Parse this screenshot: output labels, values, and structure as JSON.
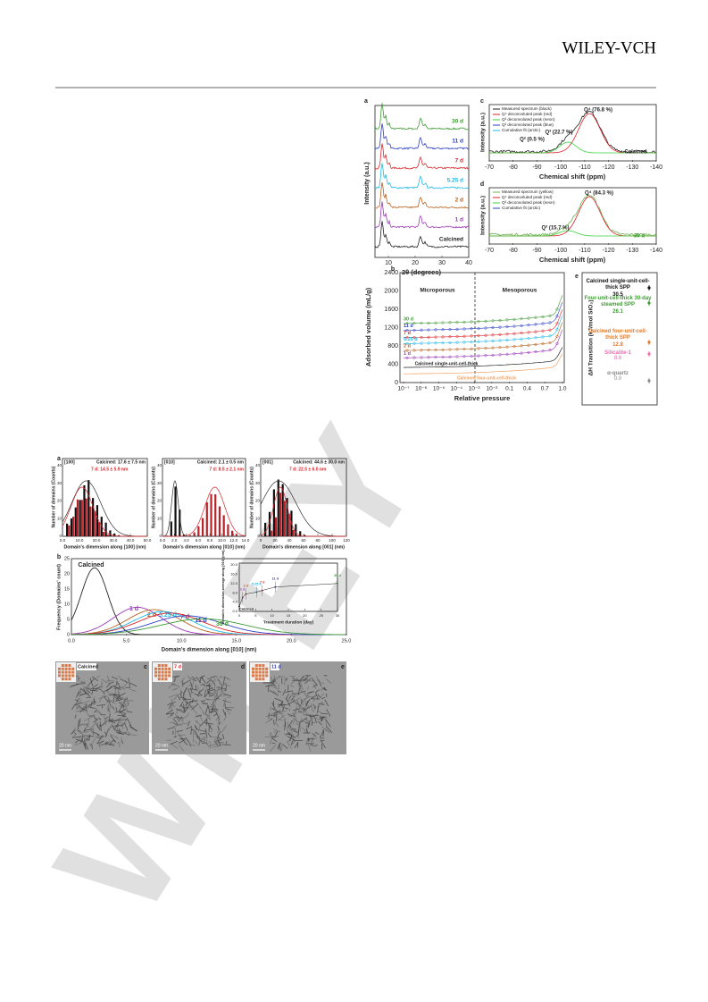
{
  "header": {
    "publisher": "WILEY-VCH"
  },
  "watermark": "WILEY",
  "figure1": {
    "a": {
      "label": "a",
      "curves": [
        "30 d",
        "11 d",
        "7 d",
        "5.25 d",
        "2 d",
        "1 d",
        "Calcined"
      ],
      "ylabel": "Intensity (a.u.)",
      "xlabel": "2θ (degrees)",
      "xticks": [
        "10",
        "20",
        "30",
        "40"
      ]
    },
    "c": {
      "label": "c",
      "legend": [
        "Measured spectrum (black)",
        "Q⁴ deconvoluted peak (red)",
        "Q³ deconvoluted peak (neon)",
        "Q² deconvoluted peak (blue)",
        "Cumulative fit (arctic)"
      ],
      "peaks": [
        "Q⁴ (76.8 %)",
        "Q³ (22.7 %)",
        "Q² (0.5 %)"
      ],
      "sample": "Calcined",
      "ylabel": "Intensity (a.u.)",
      "xlabel": "Chemical shift (ppm)",
      "xticks": [
        "-70",
        "-80",
        "-90",
        "-100",
        "-110",
        "-120",
        "-130",
        "-140"
      ]
    },
    "d": {
      "label": "d",
      "legend": [
        "Measured spectrum (yellow)",
        "Q⁴ deconvoluted peak (red)",
        "Q³ deconvoluted peak (neon)",
        "Cumulative fit (arctic)"
      ],
      "peaks": [
        "Q⁴ (84.3 %)",
        "Q³ (15.7 %)"
      ],
      "sample": "30 d",
      "ylabel": "Intensity (a.u.)",
      "xlabel": "Chemical shift (ppm)",
      "xticks": [
        "-70",
        "-80",
        "-90",
        "-100",
        "-110",
        "-120",
        "-130",
        "-140"
      ]
    },
    "b": {
      "label": "b",
      "ylabel": "Adsorbed volume (mL/g)",
      "yticks": [
        "0",
        "400",
        "800",
        "1200",
        "1600",
        "2000",
        "2400"
      ],
      "regions": [
        "Microporous",
        "Mesoporous"
      ],
      "xticks": [
        "10⁻⁷",
        "10⁻⁶",
        "10⁻⁵",
        "10⁻⁴",
        "10⁻³",
        "10⁻²",
        "0.1",
        "0.4",
        "0.7",
        "1.0"
      ],
      "xlabel": "Relative pressure",
      "curves": [
        "30 d",
        "11 d",
        "7 d",
        "5.25 d",
        "2 d",
        "1 d"
      ],
      "references": [
        "Calcined single-unit-cell-thick",
        "Calcined four-unit-cell-thick"
      ]
    },
    "e": {
      "label": "e",
      "ylabel": "ΔH Transition (kJ/mol SiO₂)",
      "entries": [
        {
          "name": "Calcined single-unit-cell-thick SPP",
          "value": "30.5"
        },
        {
          "name": "Four-unit-cell-thick 30-day steamed SPP",
          "value": "26.1"
        },
        {
          "name": "Calcined four-unit-cell-thick SPP",
          "value": "12.8"
        },
        {
          "name": "Silicalite-1",
          "value": "8.6"
        },
        {
          "name": "α-quartz",
          "value": "0.0"
        }
      ]
    }
  },
  "figure2": {
    "a": {
      "label": "a",
      "ylabel": "Number of domains (Counts)",
      "panels": [
        {
          "direction": "[100]",
          "calcined": "Calcined: 17.6 ± 7.5 nm",
          "treated": "7 d: 14.5 ± 5.9 nm",
          "xlabel": "Domain's dimension along [100] (nm)",
          "xticks": [
            "0.0",
            "10.0",
            "20.0",
            "30.0",
            "40.0",
            "50.0"
          ],
          "yticks": [
            "0",
            "10",
            "20",
            "30",
            "40"
          ]
        },
        {
          "direction": "[010]",
          "calcined": "Calcined: 2.1 ± 0.5 nm",
          "treated": "7 d: 8.5 ± 2.1 nm",
          "xlabel": "Domain's dimension along [010] (nm)",
          "xticks": [
            "0.0",
            "2.0",
            "4.0",
            "6.0",
            "8.0",
            "10.0",
            "12.0",
            "14.0"
          ],
          "yticks": [
            "0",
            "10",
            "20",
            "30",
            "40"
          ]
        },
        {
          "direction": "[001]",
          "calcined": "Calcined: 44.6 ± 30.0 nm",
          "treated": "7 d: 22.5 ± 6.0 nm",
          "xlabel": "Domain's dimension along [001] (nm)",
          "xticks": [
            "0",
            "20",
            "40",
            "60",
            "80",
            "100",
            "120"
          ],
          "yticks": [
            "0",
            "10",
            "20",
            "30",
            "40"
          ]
        }
      ]
    },
    "b": {
      "label": "b",
      "ylabel": "Frequency (Domains' count)",
      "xlabel": "Domain's dimension along [010] (nm)",
      "xticks": [
        "0.0",
        "5.0",
        "10.0",
        "15.0",
        "20.0",
        "25.0"
      ],
      "yticks": [
        "0",
        "5",
        "10",
        "15",
        "20",
        "25"
      ],
      "curves": [
        "Calcined",
        "1 d",
        "2 d",
        "5.25 d",
        "7 d",
        "11 d",
        "30 d"
      ],
      "inset": {
        "ylabel": "Domain's dimension average along [010] (nm)",
        "xlabel": "Treatment duration (day)",
        "xticks": [
          "0",
          "5",
          "10",
          "15",
          "20",
          "25",
          "30"
        ],
        "yticks": [
          "0.0",
          "4.0",
          "8.0",
          "12.0",
          "16.0",
          "20.0"
        ],
        "points": [
          "Calcined",
          "1 d",
          "2 d",
          "5.25 d",
          "7 d",
          "11 d",
          "30 d"
        ]
      }
    },
    "images": [
      {
        "label": "c",
        "sample": "Calcined",
        "scale": "20 nm"
      },
      {
        "label": "d",
        "sample": "7 d",
        "scale": "20 nm"
      },
      {
        "label": "e",
        "sample": "11 d",
        "scale": "20 nm"
      }
    ]
  }
}
